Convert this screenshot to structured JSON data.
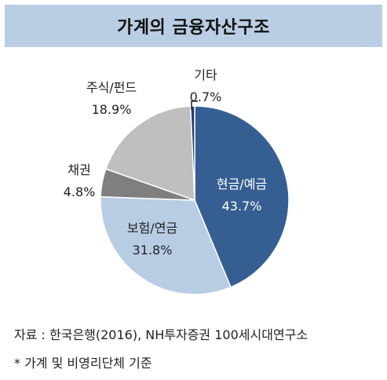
{
  "title": "가계의 금융자산구조",
  "chart_data": {
    "type": "pie",
    "title": "가계의 금융자산구조",
    "slices": [
      {
        "label": "현금/예금",
        "value": 43.7,
        "value_label": "43.7%",
        "color": "#355f93",
        "label_color": "#ffffff"
      },
      {
        "label": "보험/연금",
        "value": 31.8,
        "value_label": "31.8%",
        "color": "#b8cce4",
        "label_color": "#222222"
      },
      {
        "label": "채권",
        "value": 4.8,
        "value_label": "4.8%",
        "color": "#7f7f7f",
        "label_color": "#222222"
      },
      {
        "label": "주식/펀드",
        "value": 18.9,
        "value_label": "18.9%",
        "color": "#bfbfbf",
        "label_color": "#222222"
      },
      {
        "label": "기타",
        "value": 0.7,
        "value_label": "0.7%",
        "color": "#1f3e66",
        "label_color": "#222222"
      }
    ],
    "start": "12 o'clock",
    "direction": "clockwise"
  },
  "footnotes": {
    "source": "자료 : 한국은행(2016), NH투자증권 100세시대연구소",
    "note": "* 가계 및 비영리단체 기준"
  }
}
